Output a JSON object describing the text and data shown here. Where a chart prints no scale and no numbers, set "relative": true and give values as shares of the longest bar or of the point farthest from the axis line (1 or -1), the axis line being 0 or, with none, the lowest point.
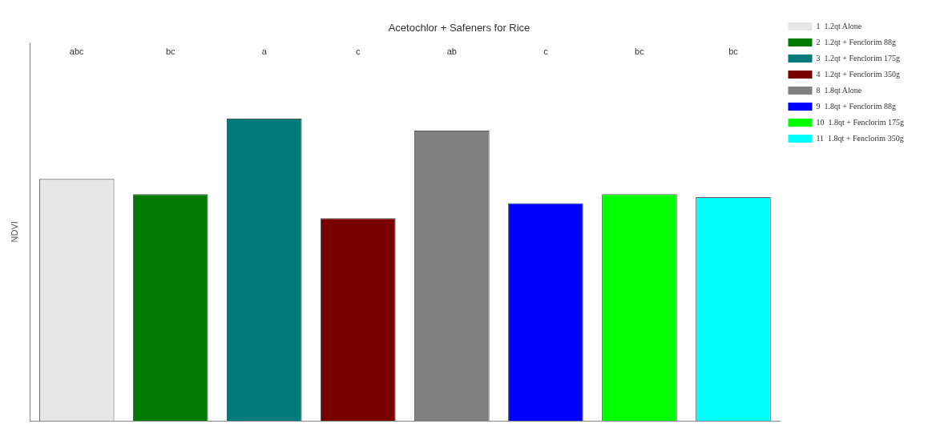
{
  "chart_data": {
    "type": "bar",
    "title": "Acetochlor + Safeners for Rice",
    "ylabel": "NDVI",
    "relative": true,
    "stacked": true,
    "categories": [
      null,
      null,
      null,
      null,
      null,
      null,
      null,
      null
    ],
    "series": [
      {
        "name": "1  1.2qt Alone",
        "color": "#e6e6e6",
        "values": [
          0.8,
          null,
          null,
          null,
          null,
          null,
          null,
          null
        ]
      },
      {
        "name": "2  1.2qt + Fenclorim 88g",
        "color": "#007a00",
        "values": [
          null,
          0.75,
          null,
          null,
          null,
          null,
          null,
          null
        ]
      },
      {
        "name": "3  1.2qt + Fenclorim 175g",
        "color": "#007a7a",
        "values": [
          null,
          null,
          1,
          null,
          null,
          null,
          null,
          null
        ]
      },
      {
        "name": "4  1.2qt + Fenclorim 350g",
        "color": "#7a0000",
        "values": [
          null,
          null,
          null,
          0.67,
          null,
          null,
          null,
          null
        ]
      },
      {
        "name": "8  1.8qt Alone",
        "color": "#808080",
        "values": [
          null,
          null,
          null,
          null,
          0.96,
          null,
          null,
          null
        ]
      },
      {
        "name": "9  1.8qt + Fenclorim 88g",
        "color": "#0000ff",
        "values": [
          null,
          null,
          null,
          null,
          null,
          0.72,
          null,
          null
        ]
      },
      {
        "name": "10  1.8qt + Fenclorim 175g",
        "color": "#00ff00",
        "values": [
          null,
          null,
          null,
          null,
          null,
          null,
          0.75,
          null
        ]
      },
      {
        "name": "11  1.8qt + Fenclorim 350g",
        "color": "#00ffff",
        "values": [
          null,
          null,
          null,
          null,
          null,
          null,
          null,
          0.74
        ]
      }
    ],
    "annotations": [
      "abc",
      "bc",
      "a",
      "c",
      "ab",
      "c",
      "bc",
      "bc"
    ],
    "legend": "top right"
  }
}
